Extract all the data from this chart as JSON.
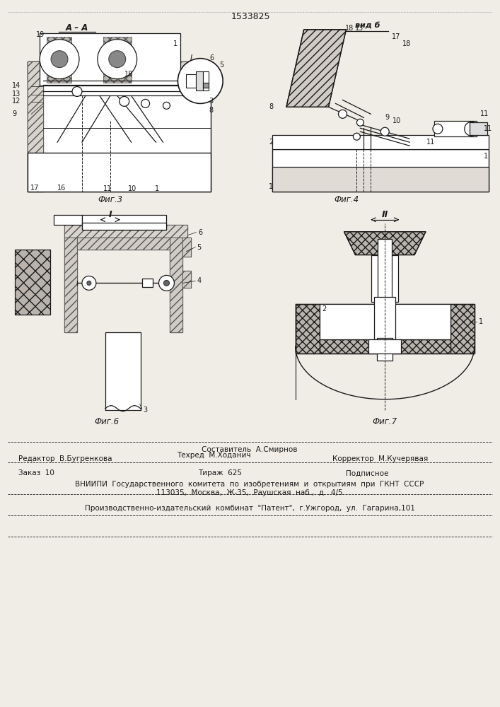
{
  "patent_number": "1533825",
  "background_color": "#f0ede6",
  "line_color": "#1a1a1a",
  "footer": {
    "composer": "Составитель  А.Смирнов",
    "editor_label": "Редактор  В.Бугренкова",
    "tech_label": "Техред  М.Ходанич",
    "corrector_label": "Корректор  М.Кучерявая",
    "order": "Заказ  10",
    "tirazh": "Тираж  625",
    "podpisnoe": "Подписное",
    "vniipи": "ВНИИПИ  Государственного  комитета  по  изобретениям  и  открытиям  при  ГКНТ  СССР",
    "address": "113035,  Москва,  Ж-35,  Раушская  наб.,  д.  4/5",
    "publisher": "Производственно-издательский  комбинат  \"Патент\",  г.Ужгород,  ул.  Гагарина,101"
  }
}
